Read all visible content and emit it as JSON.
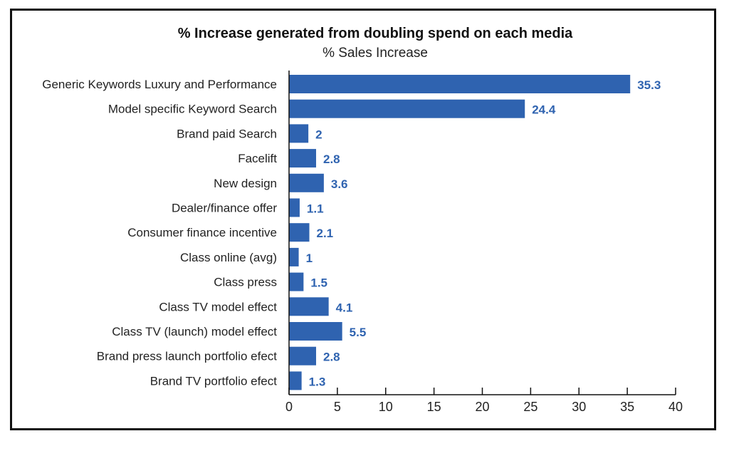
{
  "chart_data": {
    "type": "bar",
    "orientation": "horizontal",
    "title": "% Increase generated from doubling spend on each media",
    "subtitle": "% Sales Increase",
    "xlabel": "",
    "ylabel": "",
    "categories": [
      "Generic Keywords Luxury and Performance",
      "Model specific Keyword Search",
      "Brand paid Search",
      "Facelift",
      "New design",
      "Dealer/finance offer",
      "Consumer finance incentive",
      "Class online (avg)",
      "Class press",
      "Class TV model effect",
      "Class TV (launch) model effect",
      "Brand press launch portfolio efect",
      "Brand TV portfolio efect"
    ],
    "values": [
      35.3,
      24.4,
      2,
      2.8,
      3.6,
      1.1,
      2.1,
      1,
      1.5,
      4.1,
      5.5,
      2.8,
      1.3
    ],
    "value_labels": [
      "35.3",
      "24.4",
      "2",
      "2.8",
      "3.6",
      "1.1",
      "2.1",
      "1",
      "1.5",
      "4.1",
      "5.5",
      "2.8",
      "1.3"
    ],
    "xlim": [
      0,
      40
    ],
    "xticks": [
      0,
      5,
      10,
      15,
      20,
      25,
      30,
      35,
      40
    ],
    "xtick_labels": [
      "0",
      "5",
      "10",
      "15",
      "20",
      "25",
      "30",
      "35",
      "40"
    ],
    "grid": false,
    "legend": "none",
    "colors": {
      "bar": "#2f63b0",
      "value_label": "#2f63b0",
      "axis": "#111111"
    }
  }
}
